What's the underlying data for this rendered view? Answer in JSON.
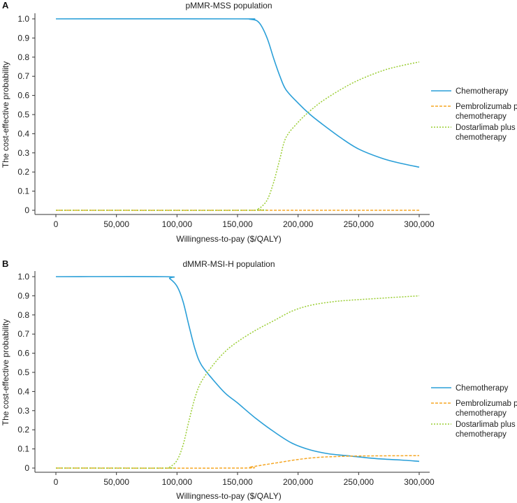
{
  "chart_data": [
    {
      "type": "line",
      "panel_letter": "A",
      "title": "pMMR-MSS population",
      "xlabel": "Willingness-to-pay ($/QALY)",
      "ylabel": "The cost-effective probability",
      "xlim": [
        0,
        300000
      ],
      "ylim": [
        0,
        1.0
      ],
      "x_ticks": [
        "0",
        "50,000",
        "100,000",
        "150,000",
        "200,000",
        "250,000",
        "300,000"
      ],
      "y_ticks": [
        "0",
        "0.1",
        "0.2",
        "0.3",
        "0.4",
        "0.5",
        "0.6",
        "0.7",
        "0.8",
        "0.9",
        "1.0"
      ],
      "legend_position": "right",
      "series": [
        {
          "name": "Chemotherapy",
          "legend_lines": [
            "Chemotherapy"
          ],
          "color": "#2a9fd8",
          "style": "solid",
          "points": [
            [
              0,
              1.0
            ],
            [
              150000,
              1.0
            ],
            [
              160000,
              0.998
            ],
            [
              166000,
              0.99
            ],
            [
              170000,
              0.96
            ],
            [
              175000,
              0.89
            ],
            [
              180000,
              0.79
            ],
            [
              185000,
              0.7
            ],
            [
              190000,
              0.63
            ],
            [
              200000,
              0.56
            ],
            [
              210000,
              0.5
            ],
            [
              220000,
              0.45
            ],
            [
              235000,
              0.38
            ],
            [
              250000,
              0.32
            ],
            [
              270000,
              0.27
            ],
            [
              285000,
              0.245
            ],
            [
              300000,
              0.225
            ]
          ]
        },
        {
          "name": "Pembrolizumab plus chemotherapy",
          "legend_lines": [
            "Pembrolizumab plus",
            "chemotherapy"
          ],
          "color": "#f5a623",
          "style": "dashed",
          "points": [
            [
              0,
              0.0
            ],
            [
              300000,
              0.0
            ]
          ]
        },
        {
          "name": "Dostarlimab plus chemotherapy",
          "legend_lines": [
            "Dostarlimab plus",
            "chemotherapy"
          ],
          "color": "#9acd32",
          "style": "dotted",
          "points": [
            [
              0,
              0.0
            ],
            [
              160000,
              0.0
            ],
            [
              166000,
              0.005
            ],
            [
              170000,
              0.02
            ],
            [
              175000,
              0.06
            ],
            [
              180000,
              0.15
            ],
            [
              185000,
              0.27
            ],
            [
              190000,
              0.38
            ],
            [
              200000,
              0.46
            ],
            [
              210000,
              0.52
            ],
            [
              220000,
              0.57
            ],
            [
              235000,
              0.63
            ],
            [
              250000,
              0.68
            ],
            [
              270000,
              0.73
            ],
            [
              285000,
              0.755
            ],
            [
              300000,
              0.775
            ]
          ]
        }
      ]
    },
    {
      "type": "line",
      "panel_letter": "B",
      "title": "dMMR-MSI-H population",
      "xlabel": "Willingness-to-pay ($/QALY)",
      "ylabel": "The cost-effective probability",
      "xlim": [
        0,
        300000
      ],
      "ylim": [
        0,
        1.0
      ],
      "x_ticks": [
        "0",
        "50,000",
        "100,000",
        "150,000",
        "200,000",
        "250,000",
        "300,000"
      ],
      "y_ticks": [
        "0",
        "0.1",
        "0.2",
        "0.3",
        "0.4",
        "0.5",
        "0.6",
        "0.7",
        "0.8",
        "0.9",
        "1.0"
      ],
      "legend_position": "right",
      "series": [
        {
          "name": "Chemotherapy",
          "legend_lines": [
            "Chemotherapy"
          ],
          "color": "#2a9fd8",
          "style": "solid",
          "points": [
            [
              0,
              1.0
            ],
            [
              90000,
              1.0
            ],
            [
              94000,
              0.99
            ],
            [
              100000,
              0.95
            ],
            [
              105000,
              0.87
            ],
            [
              110000,
              0.74
            ],
            [
              115000,
              0.62
            ],
            [
              120000,
              0.54
            ],
            [
              130000,
              0.46
            ],
            [
              140000,
              0.39
            ],
            [
              150000,
              0.34
            ],
            [
              165000,
              0.26
            ],
            [
              180000,
              0.19
            ],
            [
              195000,
              0.13
            ],
            [
              210000,
              0.095
            ],
            [
              225000,
              0.075
            ],
            [
              240000,
              0.065
            ],
            [
              255000,
              0.055
            ],
            [
              270000,
              0.047
            ],
            [
              285000,
              0.042
            ],
            [
              300000,
              0.035
            ]
          ]
        },
        {
          "name": "Pembrolizumab plus chemotherapy",
          "legend_lines": [
            "Pembrolizumab plus",
            "chemotherapy"
          ],
          "color": "#f5a623",
          "style": "dashed",
          "points": [
            [
              0,
              0.0
            ],
            [
              150000,
              0.0
            ],
            [
              160000,
              0.005
            ],
            [
              170000,
              0.015
            ],
            [
              185000,
              0.03
            ],
            [
              200000,
              0.045
            ],
            [
              215000,
              0.055
            ],
            [
              230000,
              0.06
            ],
            [
              250000,
              0.063
            ],
            [
              300000,
              0.065
            ]
          ]
        },
        {
          "name": "Dostarlimab plus chemotherapy",
          "legend_lines": [
            "Dostarlimab plus",
            "chemotherapy"
          ],
          "color": "#9acd32",
          "style": "dotted",
          "points": [
            [
              0,
              0.0
            ],
            [
              90000,
              0.0
            ],
            [
              94000,
              0.005
            ],
            [
              100000,
              0.04
            ],
            [
              105000,
              0.12
            ],
            [
              110000,
              0.25
            ],
            [
              115000,
              0.37
            ],
            [
              120000,
              0.45
            ],
            [
              130000,
              0.54
            ],
            [
              140000,
              0.61
            ],
            [
              150000,
              0.66
            ],
            [
              165000,
              0.72
            ],
            [
              180000,
              0.77
            ],
            [
              195000,
              0.82
            ],
            [
              210000,
              0.85
            ],
            [
              230000,
              0.87
            ],
            [
              250000,
              0.88
            ],
            [
              275000,
              0.89
            ],
            [
              300000,
              0.9
            ]
          ]
        }
      ]
    }
  ]
}
